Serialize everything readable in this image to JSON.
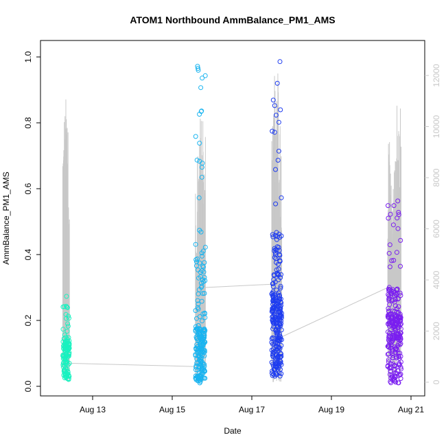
{
  "chart_data": {
    "type": "scatter",
    "title": "ATOM1 Northbound AmmBalance_PM1_AMS",
    "xlabel": "Date",
    "ylabel": "AmmBalance_PM1_AMS",
    "x_ticks": [
      "Aug 13",
      "Aug 15",
      "Aug 17",
      "Aug 19",
      "Aug 21"
    ],
    "xlim": [
      "Aug 12 00:00",
      "Aug 21 04:00"
    ],
    "ylim": [
      0.0,
      1.0
    ],
    "y_ticks": [
      "0.0",
      "0.2",
      "0.4",
      "0.6",
      "0.8",
      "1.0"
    ],
    "y2_ticks": [
      "0",
      "2000",
      "4000",
      "6000",
      "8000",
      "10000",
      "12000"
    ],
    "y2lim": [
      0,
      12000
    ],
    "grid": false,
    "legend": "none",
    "colors": {
      "series_1": "#19f2c0",
      "series_2": "#19b4f0",
      "series_3": "#1e3cf0",
      "series_4": "#7a1ef0",
      "secondary_line": "#c8c8c8"
    },
    "series": [
      {
        "x_range": [
          "Aug 12 06:00",
          "Aug 12 10:00"
        ],
        "points_y": {
          "count": 120,
          "min": 0.02,
          "max": 0.28,
          "median": 0.09
        },
        "secondary_y_peaks": [
          10000,
          10800,
          11200,
          11500,
          7500
        ]
      },
      {
        "x_range": [
          "Aug 15 14:00",
          "Aug 15 20:00"
        ],
        "points_y": {
          "count": 220,
          "min": 0.01,
          "max": 1.01,
          "median": 0.12
        },
        "secondary_y_peaks": [
          7500,
          9000,
          10500,
          11000,
          10000
        ]
      },
      {
        "x_range": [
          "Aug 17 12:00",
          "Aug 17 18:00"
        ],
        "points_y": {
          "count": 260,
          "min": 0.03,
          "max": 0.99,
          "median": 0.18
        },
        "secondary_y_peaks": [
          11000,
          12400,
          11700,
          12600,
          10500
        ]
      },
      {
        "x_range": [
          "Aug 20 10:00",
          "Aug 20 18:00"
        ],
        "points_y": {
          "count": 260,
          "min": 0.01,
          "max": 0.59,
          "median": 0.14
        },
        "secondary_y_peaks": [
          9500,
          9200,
          10500,
          11900,
          11000
        ]
      }
    ],
    "connector_line_y": [
      0.07,
      0.06,
      0.3,
      0.31,
      0.15,
      0.3
    ]
  }
}
